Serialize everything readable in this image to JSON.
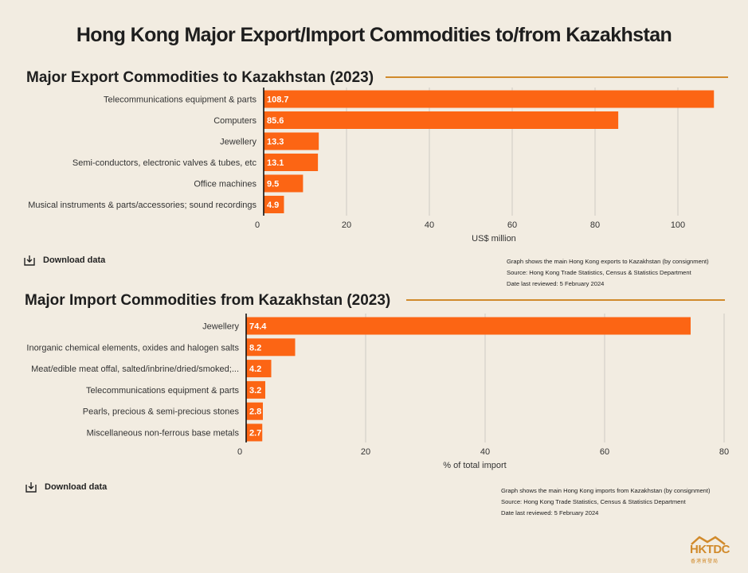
{
  "title": "Hong Kong Major Export/Import Commodities to/from Kazakhstan",
  "colors": {
    "bar": "#fc6514",
    "accent_rule": "#d18a2b",
    "background": "#f2ece1",
    "grid": "#cfcac2"
  },
  "export": {
    "section_title": "Major Export Commodities to Kazakhstan (2023)",
    "download_label": "Download data",
    "notes": [
      "Graph shows the main Hong Kong exports to Kazakhstan (by consignment)",
      "Source: Hong Kong Trade Statistics, Census & Statistics Department",
      "Date last reviewed: 5 February 2024"
    ]
  },
  "import": {
    "section_title": "Major Import Commodities from Kazakhstan (2023)",
    "download_label": "Download data",
    "notes": [
      "Graph shows the main Hong Kong imports from Kazakhstan (by consignment)",
      "Source: Hong Kong Trade Statistics, Census & Statistics Department",
      "Date last reviewed: 5 February 2024"
    ]
  },
  "logo": {
    "text": "HKTDC",
    "subtext": "香港貿發局"
  },
  "chart_data": [
    {
      "type": "bar",
      "orientation": "horizontal",
      "title": "Major Export Commodities to Kazakhstan (2023)",
      "categories": [
        "Telecommunications equipment & parts",
        "Computers",
        "Jewellery",
        "Semi-conductors, electronic valves & tubes, etc",
        "Office machines",
        "Musical instruments & parts/accessories; sound recordings"
      ],
      "values": [
        108.7,
        85.6,
        13.3,
        13.1,
        9.5,
        4.9
      ],
      "value_labels": [
        "108.7",
        "85.6",
        "13.3",
        "13.1",
        "9.5",
        "4.9"
      ],
      "xlabel": "US$ million",
      "xlim": [
        0,
        110
      ],
      "xticks": [
        0,
        20,
        40,
        60,
        80,
        100
      ],
      "grid": true
    },
    {
      "type": "bar",
      "orientation": "horizontal",
      "title": "Major Import Commodities from Kazakhstan (2023)",
      "categories": [
        "Jewellery",
        "Inorganic chemical elements, oxides and halogen salts",
        "Meat/edible meat offal, salted/inbrine/dried/smoked;...",
        "Telecommunications equipment & parts",
        "Pearls, precious & semi-precious stones",
        "Miscellaneous non-ferrous base metals"
      ],
      "values": [
        74.4,
        8.2,
        4.2,
        3.2,
        2.8,
        2.7
      ],
      "value_labels": [
        "74.4",
        "8.2",
        "4.2",
        "3.2",
        "2.8",
        "2.7"
      ],
      "xlabel": "% of total import",
      "xlim": [
        0,
        80
      ],
      "xticks": [
        0,
        20,
        40,
        60,
        80
      ],
      "grid": true
    }
  ]
}
